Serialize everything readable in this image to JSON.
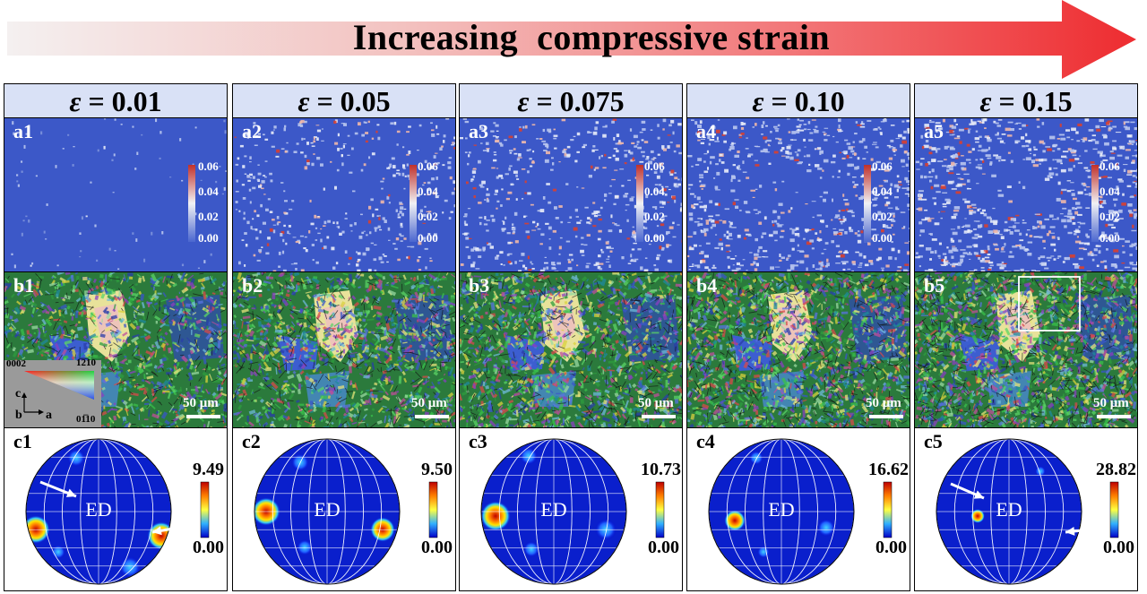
{
  "banner": {
    "title": "Increasing  compressive strain"
  },
  "colors": {
    "map_blue": "#3c58c8",
    "header_bg": "#d9e1f6",
    "arrow_red": "#ee3033"
  },
  "columns": [
    {
      "eps_symbol": "ε",
      "eps_value": " = 0.01",
      "a_label": "a1",
      "b_label": "b1",
      "c_label": "c1",
      "cb_a": [
        "0.06",
        "0.04",
        "0.02",
        "0.00"
      ],
      "pf_max": "9.49",
      "pf_min": "0.00",
      "scalebar": "50 μm"
    },
    {
      "eps_symbol": "ε",
      "eps_value": " = 0.05",
      "a_label": "a2",
      "b_label": "b2",
      "c_label": "c2",
      "cb_a": [
        "0.06",
        "0.04",
        "0.02",
        "0.00"
      ],
      "pf_max": "9.50",
      "pf_min": "0.00",
      "scalebar": "50 μm"
    },
    {
      "eps_symbol": "ε",
      "eps_value": " = 0.075",
      "a_label": "a3",
      "b_label": "b3",
      "c_label": "c3",
      "cb_a": [
        "0.06",
        "0.04",
        "0.02",
        "0.00"
      ],
      "pf_max": "10.73",
      "pf_min": "0.00",
      "scalebar": "50 μm"
    },
    {
      "eps_symbol": "ε",
      "eps_value": " = 0.10",
      "a_label": "a4",
      "b_label": "b4",
      "c_label": "c4",
      "cb_a": [
        "0.06",
        "0.04",
        "0.02",
        "0.00"
      ],
      "pf_max": "16.62",
      "pf_min": "0.00",
      "scalebar": "50 μm"
    },
    {
      "eps_symbol": "ε",
      "eps_value": " = 0.15",
      "a_label": "a5",
      "b_label": "b5",
      "c_label": "c5",
      "cb_a": [
        "0.06",
        "0.04",
        "0.02",
        "0.00"
      ],
      "pf_max": "28.82",
      "pf_min": "0.00",
      "scalebar": "50 μm"
    }
  ],
  "pole_figure": {
    "center_label": "ED"
  },
  "ipf_legend": {
    "top_left": "0002",
    "top_right": "1̅2̅10",
    "bottom_right": "01̅10",
    "c": "c",
    "b": "b",
    "a": "a"
  }
}
